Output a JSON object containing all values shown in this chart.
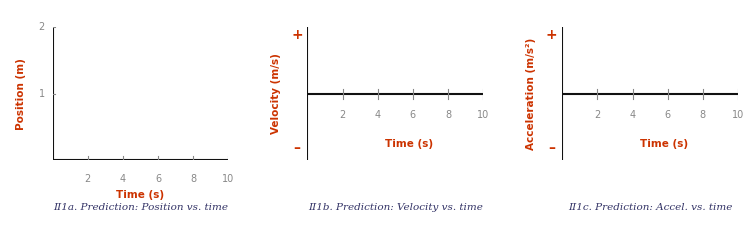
{
  "label_color": "#CC3300",
  "axis_color": "#111111",
  "tick_color": "#888888",
  "caption_color": "#333366",
  "background_color": "#ffffff",
  "graphs": [
    {
      "id": "II1a",
      "ylabel": "Position (m)",
      "xlabel": "Time (s)",
      "caption": "II1a. Prediction: Position vs. time",
      "xlim": [
        0,
        10
      ],
      "ylim": [
        0,
        2
      ],
      "ytick_vals": [
        1,
        2
      ],
      "xtick_vals": [
        2,
        4,
        6,
        8,
        10
      ],
      "plus_minus": false,
      "centered_xaxis": false
    },
    {
      "id": "II1b",
      "ylabel": "Velocity (m/s)",
      "xlabel": "Time (s)",
      "caption": "II1b. Prediction: Velocity vs. time",
      "xlim": [
        0,
        10
      ],
      "ylim": [
        -1,
        1
      ],
      "ytick_vals": [],
      "xtick_vals": [
        2,
        4,
        6,
        8,
        10
      ],
      "plus_minus": true,
      "centered_xaxis": true
    },
    {
      "id": "II1c",
      "ylabel": "Acceleration (m/s²)",
      "xlabel": "Time (s)",
      "caption": "II1c. Prediction: Accel. vs. time",
      "xlim": [
        0,
        10
      ],
      "ylim": [
        -1,
        1
      ],
      "ytick_vals": [],
      "xtick_vals": [
        2,
        4,
        6,
        8,
        10
      ],
      "plus_minus": true,
      "centered_xaxis": true
    }
  ]
}
